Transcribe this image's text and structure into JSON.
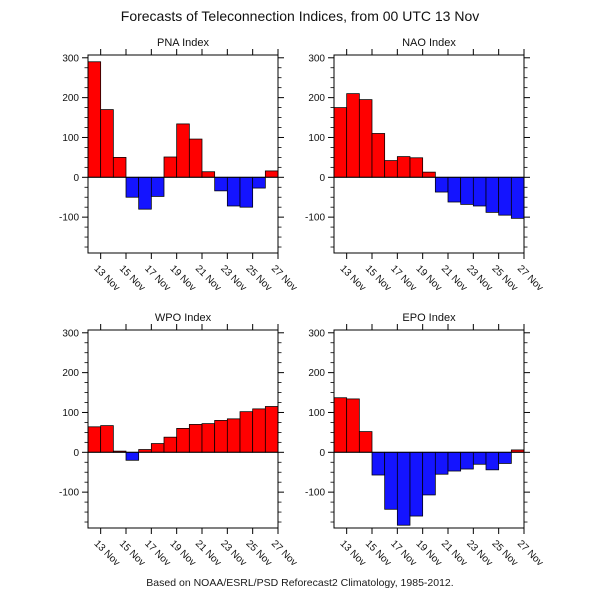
{
  "page": {
    "title": "Forecasts of Teleconnection Indices, from 00 UTC 13 Nov",
    "footer": "Based on NOAA/ESRL/PSD Reforecast2 Climatology, 1985-2012."
  },
  "colors": {
    "positive_bar": "#ff0000",
    "negative_bar": "#1414ff",
    "axis": "#000000",
    "text": "#111111"
  },
  "axes": {
    "x_tick_labels": [
      "13 Nov",
      "15 Nov",
      "17 Nov",
      "19 Nov",
      "21 Nov",
      "23 Nov",
      "25 Nov",
      "27 Nov"
    ],
    "x_tick_days": [
      13,
      15,
      17,
      19,
      21,
      23,
      25,
      27
    ],
    "y_tick_labels": [
      "300",
      "200",
      "100",
      "0",
      "-100"
    ],
    "y_major_ticks": [
      300,
      200,
      100,
      0,
      -100
    ],
    "y_minor_step": 25,
    "ylim": [
      -190,
      307
    ],
    "grid": false,
    "legend": false
  },
  "chart_data": [
    {
      "type": "bar",
      "title": "PNA Index",
      "categories": [
        "13 Nov",
        "14 Nov",
        "15 Nov",
        "16 Nov",
        "17 Nov",
        "18 Nov",
        "19 Nov",
        "20 Nov",
        "21 Nov",
        "22 Nov",
        "23 Nov",
        "24 Nov",
        "25 Nov",
        "26 Nov",
        "27 Nov"
      ],
      "values": [
        290,
        170,
        50,
        -50,
        -80,
        -48,
        51,
        134,
        96,
        14,
        -34,
        -72,
        -75,
        -27,
        16
      ],
      "xlabel": "",
      "ylabel": ""
    },
    {
      "type": "bar",
      "title": "NAO Index",
      "categories": [
        "13 Nov",
        "14 Nov",
        "15 Nov",
        "16 Nov",
        "17 Nov",
        "18 Nov",
        "19 Nov",
        "20 Nov",
        "21 Nov",
        "22 Nov",
        "23 Nov",
        "24 Nov",
        "25 Nov",
        "26 Nov",
        "27 Nov"
      ],
      "values": [
        175,
        210,
        195,
        110,
        42,
        52,
        49,
        13,
        -37,
        -62,
        -68,
        -72,
        -88,
        -95,
        -103
      ],
      "xlabel": "",
      "ylabel": ""
    },
    {
      "type": "bar",
      "title": "WPO Index",
      "categories": [
        "13 Nov",
        "14 Nov",
        "15 Nov",
        "16 Nov",
        "17 Nov",
        "18 Nov",
        "19 Nov",
        "20 Nov",
        "21 Nov",
        "22 Nov",
        "23 Nov",
        "24 Nov",
        "25 Nov",
        "26 Nov",
        "27 Nov"
      ],
      "values": [
        64,
        67,
        3,
        -20,
        7,
        22,
        38,
        60,
        70,
        72,
        80,
        84,
        102,
        109,
        115
      ],
      "xlabel": "",
      "ylabel": ""
    },
    {
      "type": "bar",
      "title": "EPO Index",
      "categories": [
        "13 Nov",
        "14 Nov",
        "15 Nov",
        "16 Nov",
        "17 Nov",
        "18 Nov",
        "19 Nov",
        "20 Nov",
        "21 Nov",
        "22 Nov",
        "23 Nov",
        "24 Nov",
        "25 Nov",
        "26 Nov",
        "27 Nov"
      ],
      "values": [
        137,
        134,
        52,
        -57,
        -143,
        -183,
        -160,
        -107,
        -55,
        -47,
        -42,
        -30,
        -44,
        -28,
        6
      ],
      "xlabel": "",
      "ylabel": ""
    }
  ]
}
